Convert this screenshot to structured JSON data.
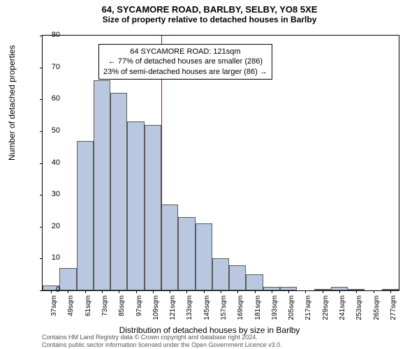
{
  "title": "64, SYCAMORE ROAD, BARLBY, SELBY, YO8 5XE",
  "subtitle": "Size of property relative to detached houses in Barlby",
  "ylabel": "Number of detached properties",
  "xlabel": "Distribution of detached houses by size in Barlby",
  "chart": {
    "type": "histogram",
    "ylim": [
      0,
      80
    ],
    "ytick_step": 10,
    "bar_fill": "#b9c8e0",
    "bar_border": "#5a5a5a",
    "background": "#ffffff",
    "refline_x": 121,
    "refline_color": "#cc0000",
    "x_categories": [
      "37sqm",
      "49sqm",
      "61sqm",
      "73sqm",
      "85sqm",
      "97sqm",
      "109sqm",
      "121sqm",
      "133sqm",
      "145sqm",
      "157sqm",
      "169sqm",
      "181sqm",
      "193sqm",
      "205sqm",
      "217sqm",
      "229sqm",
      "241sqm",
      "253sqm",
      "265sqm",
      "277sqm"
    ],
    "values": [
      1.5,
      7,
      47,
      66,
      62,
      53,
      52,
      27,
      23,
      21,
      10,
      8,
      5,
      1,
      1,
      0,
      0.5,
      1,
      0.5,
      0,
      0.5
    ]
  },
  "annotation": {
    "line1": "64 SYCAMORE ROAD: 121sqm",
    "line2": "← 77% of detached houses are smaller (286)",
    "line3": "23% of semi-detached houses are larger (86) →"
  },
  "credits": {
    "line1": "Contains HM Land Registry data © Crown copyright and database right 2024.",
    "line2": "Contains public sector information licensed under the Open Government Licence v3.0."
  }
}
